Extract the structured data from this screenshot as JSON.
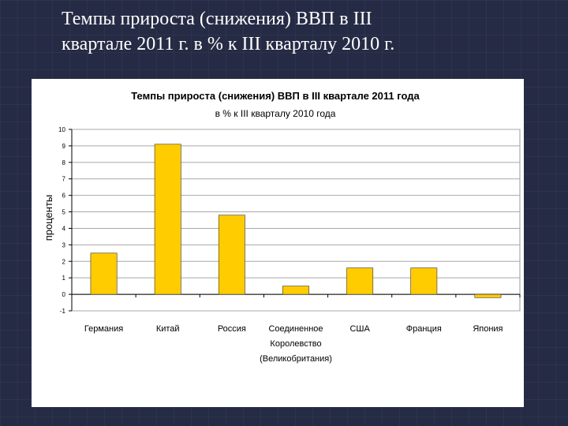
{
  "slide": {
    "title_line1": "Темпы прироста (снижения) ВВП в III",
    "title_line2": "квартале 2011 г. в % к III кварталу 2010 г."
  },
  "colors": {
    "background": "#262b45",
    "bar_fill": "#ffcc00",
    "bar_stroke": "#333333"
  },
  "chart_data": {
    "type": "bar",
    "title": "Темпы прироста (снижения) ВВП в III квартале 2011 года",
    "subtitle": "в % к III кварталу 2010 года",
    "xlabel": "",
    "ylabel": "проценты",
    "categories": [
      "Германия",
      "Китай",
      "Россия",
      "Соединенное Королевство (Великобритания)",
      "США",
      "Франция",
      "Япония"
    ],
    "category_lines": [
      [
        "Германия"
      ],
      [
        "Китай"
      ],
      [
        "Россия"
      ],
      [
        "Соединенное",
        "Королевство",
        "(Великобритания)"
      ],
      [
        "США"
      ],
      [
        "Франция"
      ],
      [
        "Япония"
      ]
    ],
    "values": [
      2.5,
      9.1,
      4.8,
      0.5,
      1.6,
      1.6,
      -0.2
    ],
    "ylim": [
      -1,
      10
    ],
    "yticks": [
      "-1",
      "0",
      "1",
      "2",
      "3",
      "4",
      "5",
      "6",
      "7",
      "8",
      "9",
      "10"
    ],
    "grid": true,
    "legend": "none"
  }
}
